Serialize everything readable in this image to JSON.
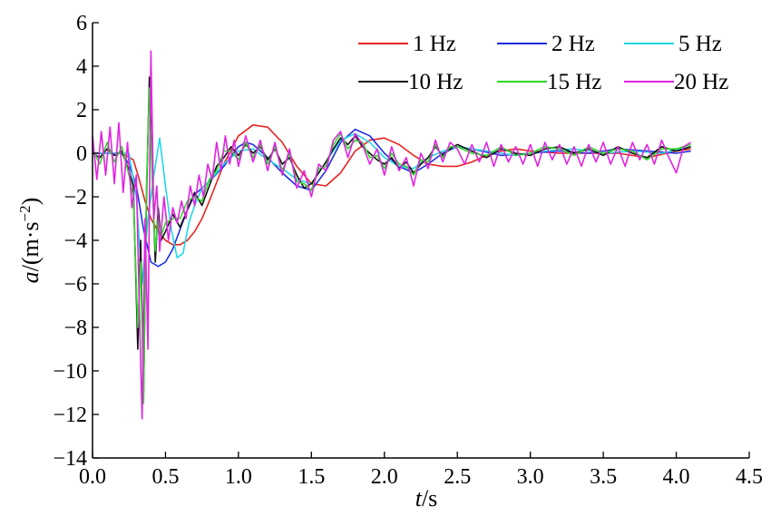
{
  "chart_data": {
    "type": "line",
    "title": "",
    "xlabel_italic": "t",
    "xlabel_unit": "/s",
    "ylabel_italic": "a",
    "ylabel_unit_base": "/(m·s",
    "ylabel_unit_exp": "−2",
    "ylabel_unit_close": ")",
    "xlim": [
      0,
      4.5
    ],
    "ylim": [
      -14,
      6
    ],
    "xticks": [
      0.0,
      0.5,
      1.0,
      1.5,
      2.0,
      2.5,
      3.0,
      3.5,
      4.0,
      4.5
    ],
    "xtick_labels": [
      "0.0",
      "0.5",
      "1.0",
      "1.5",
      "2.0",
      "2.5",
      "3.0",
      "3.5",
      "4.0",
      "4.5"
    ],
    "yticks": [
      -14,
      -12,
      -10,
      -8,
      -6,
      -4,
      -2,
      0,
      2,
      4,
      6
    ],
    "ytick_labels": [
      "−14",
      "−12",
      "−10",
      "−8",
      "−6",
      "−4",
      "−2",
      "0",
      "2",
      "4",
      "6"
    ],
    "grid": false,
    "legend_position": "top-right",
    "series": [
      {
        "name": "1 Hz",
        "color": "#e8241f",
        "x": [
          0.0,
          0.2,
          0.28,
          0.32,
          0.36,
          0.4,
          0.45,
          0.5,
          0.55,
          0.6,
          0.65,
          0.7,
          0.75,
          0.8,
          0.9,
          1.0,
          1.1,
          1.2,
          1.3,
          1.4,
          1.5,
          1.6,
          1.7,
          1.8,
          1.9,
          2.0,
          2.1,
          2.2,
          2.3,
          2.4,
          2.5,
          2.6,
          2.7,
          2.8,
          2.9,
          3.0,
          3.2,
          3.4,
          3.6,
          3.8,
          4.0,
          4.1
        ],
        "y": [
          0.0,
          0.0,
          -0.3,
          -1.2,
          -2.2,
          -3.0,
          -3.6,
          -4.0,
          -4.2,
          -4.2,
          -4.0,
          -3.6,
          -3.0,
          -2.2,
          -0.5,
          0.8,
          1.3,
          1.2,
          0.5,
          -0.6,
          -1.4,
          -1.5,
          -0.9,
          0.1,
          0.6,
          0.7,
          0.4,
          -0.1,
          -0.5,
          -0.6,
          -0.6,
          -0.4,
          -0.1,
          0.1,
          0.2,
          0.1,
          0.0,
          0.0,
          0.0,
          -0.2,
          0.1,
          0.2
        ]
      },
      {
        "name": "2 Hz",
        "color": "#1f2ee0",
        "x": [
          0.0,
          0.2,
          0.25,
          0.3,
          0.35,
          0.4,
          0.45,
          0.5,
          0.55,
          0.6,
          0.65,
          0.7,
          0.8,
          0.9,
          1.0,
          1.05,
          1.1,
          1.2,
          1.3,
          1.4,
          1.5,
          1.6,
          1.7,
          1.8,
          1.9,
          2.0,
          2.1,
          2.2,
          2.3,
          2.4,
          2.5,
          2.6,
          2.8,
          3.0,
          3.2,
          3.4,
          3.6,
          3.8,
          4.0,
          4.1
        ],
        "y": [
          0.0,
          0.0,
          -0.5,
          -1.5,
          -3.5,
          -5.0,
          -5.2,
          -5.0,
          -4.4,
          -3.5,
          -2.6,
          -1.9,
          -1.3,
          -0.6,
          0.3,
          0.5,
          0.4,
          -0.2,
          -0.9,
          -1.5,
          -1.7,
          -0.8,
          0.5,
          1.1,
          0.8,
          0.0,
          -0.6,
          -0.9,
          -0.5,
          0.0,
          0.3,
          0.2,
          -0.1,
          0.0,
          0.1,
          0.0,
          0.2,
          0.1,
          0.0,
          0.1
        ]
      },
      {
        "name": "5 Hz",
        "color": "#22d8e8",
        "x": [
          0.0,
          0.25,
          0.3,
          0.34,
          0.38,
          0.42,
          0.46,
          0.5,
          0.54,
          0.58,
          0.62,
          0.66,
          0.7,
          0.75,
          0.8,
          0.9,
          1.0,
          1.1,
          1.2,
          1.3,
          1.4,
          1.5,
          1.6,
          1.7,
          1.8,
          1.9,
          2.0,
          2.1,
          2.2,
          2.3,
          2.4,
          2.5,
          2.7,
          2.9,
          3.1,
          3.3,
          3.5,
          3.7,
          3.9,
          4.1
        ],
        "y": [
          0.0,
          0.0,
          -2.0,
          -6.0,
          -3.0,
          -1.0,
          0.7,
          -1.5,
          -3.5,
          -4.8,
          -4.6,
          -3.2,
          -2.4,
          -1.6,
          -1.3,
          -0.5,
          0.1,
          0.2,
          -0.3,
          -0.7,
          -1.2,
          -1.4,
          -0.4,
          0.6,
          0.9,
          0.5,
          -0.2,
          -0.6,
          -0.7,
          -0.2,
          0.1,
          0.3,
          0.1,
          -0.1,
          0.1,
          0.2,
          0.0,
          0.1,
          0.0,
          0.3
        ]
      },
      {
        "name": "10 Hz",
        "color": "#101010",
        "x": [
          0.0,
          0.05,
          0.1,
          0.15,
          0.2,
          0.25,
          0.28,
          0.31,
          0.33,
          0.35,
          0.37,
          0.39,
          0.41,
          0.43,
          0.45,
          0.47,
          0.5,
          0.55,
          0.6,
          0.65,
          0.7,
          0.75,
          0.8,
          0.85,
          0.9,
          0.95,
          1.0,
          1.05,
          1.1,
          1.15,
          1.2,
          1.25,
          1.3,
          1.35,
          1.4,
          1.45,
          1.5,
          1.55,
          1.6,
          1.65,
          1.7,
          1.75,
          1.8,
          1.85,
          1.9,
          1.95,
          2.0,
          2.05,
          2.1,
          2.15,
          2.2,
          2.25,
          2.3,
          2.35,
          2.4,
          2.45,
          2.5,
          2.6,
          2.7,
          2.8,
          2.9,
          3.0,
          3.1,
          3.2,
          3.3,
          3.4,
          3.5,
          3.6,
          3.7,
          3.8,
          3.9,
          4.0,
          4.1
        ],
        "y": [
          0.0,
          -0.2,
          0.2,
          -0.1,
          0.1,
          -0.8,
          -1.5,
          -9.0,
          -4.0,
          -11.0,
          -2.0,
          3.5,
          -1.0,
          -5.0,
          -2.5,
          -4.0,
          -3.6,
          -2.8,
          -3.4,
          -2.6,
          -1.8,
          -2.4,
          -1.5,
          -0.6,
          -0.2,
          0.3,
          -0.1,
          0.4,
          0.0,
          0.3,
          -0.3,
          0.2,
          -0.5,
          -0.2,
          -1.0,
          -1.6,
          -1.4,
          -0.9,
          -0.4,
          0.2,
          0.7,
          0.4,
          0.8,
          0.3,
          0.0,
          -0.3,
          -0.5,
          -0.2,
          -0.7,
          -0.4,
          -0.9,
          -0.5,
          -0.2,
          0.3,
          -0.1,
          0.2,
          0.4,
          0.1,
          -0.2,
          0.2,
          0.0,
          -0.1,
          0.2,
          0.3,
          0.0,
          0.2,
          -0.1,
          0.3,
          0.0,
          -0.2,
          0.3,
          0.1,
          0.3
        ]
      },
      {
        "name": "15 Hz",
        "color": "#2fd82a",
        "x": [
          0.0,
          0.05,
          0.1,
          0.15,
          0.2,
          0.25,
          0.28,
          0.31,
          0.33,
          0.35,
          0.37,
          0.39,
          0.41,
          0.43,
          0.45,
          0.47,
          0.5,
          0.55,
          0.6,
          0.65,
          0.7,
          0.75,
          0.8,
          0.85,
          0.9,
          0.95,
          1.0,
          1.05,
          1.1,
          1.15,
          1.2,
          1.25,
          1.3,
          1.35,
          1.4,
          1.45,
          1.5,
          1.55,
          1.6,
          1.65,
          1.7,
          1.75,
          1.8,
          1.85,
          1.9,
          1.95,
          2.0,
          2.05,
          2.1,
          2.15,
          2.2,
          2.25,
          2.3,
          2.35,
          2.4,
          2.45,
          2.5,
          2.6,
          2.7,
          2.8,
          2.9,
          3.0,
          3.1,
          3.2,
          3.3,
          3.4,
          3.5,
          3.6,
          3.7,
          3.8,
          3.9,
          4.0,
          4.1
        ],
        "y": [
          0.2,
          -0.5,
          0.5,
          -0.4,
          0.3,
          -1.0,
          -2.0,
          -8.0,
          -5.0,
          -11.5,
          -1.5,
          3.0,
          -1.5,
          -4.5,
          -3.0,
          -3.8,
          -3.2,
          -3.0,
          -3.0,
          -2.2,
          -2.0,
          -2.2,
          -1.2,
          -0.8,
          0.1,
          0.1,
          -0.3,
          0.5,
          -0.2,
          0.4,
          -0.5,
          0.3,
          -0.8,
          0.0,
          -1.3,
          -1.4,
          -1.7,
          -0.7,
          -0.6,
          0.4,
          0.9,
          0.2,
          0.6,
          0.5,
          -0.2,
          -0.1,
          -0.7,
          0.0,
          -0.5,
          -0.6,
          -1.0,
          -0.3,
          -0.4,
          0.4,
          -0.2,
          0.3,
          0.3,
          0.0,
          -0.1,
          0.3,
          -0.1,
          0.0,
          0.3,
          0.2,
          -0.1,
          0.3,
          0.0,
          0.2,
          0.1,
          -0.3,
          0.2,
          0.2,
          0.4
        ]
      },
      {
        "name": "20 Hz",
        "color": "#e024e0",
        "x": [
          0.0,
          0.03,
          0.06,
          0.09,
          0.12,
          0.15,
          0.18,
          0.21,
          0.24,
          0.27,
          0.3,
          0.32,
          0.34,
          0.36,
          0.38,
          0.4,
          0.42,
          0.44,
          0.46,
          0.49,
          0.52,
          0.55,
          0.58,
          0.61,
          0.64,
          0.67,
          0.7,
          0.73,
          0.76,
          0.79,
          0.82,
          0.85,
          0.88,
          0.91,
          0.94,
          0.97,
          1.0,
          1.05,
          1.1,
          1.15,
          1.2,
          1.25,
          1.3,
          1.35,
          1.4,
          1.45,
          1.5,
          1.55,
          1.6,
          1.65,
          1.7,
          1.75,
          1.8,
          1.85,
          1.9,
          1.95,
          2.0,
          2.05,
          2.1,
          2.15,
          2.2,
          2.25,
          2.3,
          2.35,
          2.4,
          2.45,
          2.5,
          2.55,
          2.6,
          2.65,
          2.7,
          2.75,
          2.8,
          2.85,
          2.9,
          2.95,
          3.0,
          3.05,
          3.1,
          3.15,
          3.2,
          3.25,
          3.3,
          3.35,
          3.4,
          3.45,
          3.5,
          3.55,
          3.6,
          3.65,
          3.7,
          3.75,
          3.8,
          3.85,
          3.9,
          3.95,
          4.0,
          4.05,
          4.1
        ],
        "y": [
          0.8,
          -1.2,
          1.0,
          -1.0,
          1.2,
          -1.4,
          1.4,
          -1.8,
          0.5,
          -2.5,
          -1.0,
          -7.0,
          -12.2,
          -3.0,
          -9.0,
          4.7,
          -3.0,
          -1.5,
          -4.5,
          -2.0,
          -4.0,
          -2.5,
          -3.2,
          -2.2,
          -3.0,
          -1.5,
          -2.4,
          -1.0,
          -2.0,
          -0.5,
          -1.2,
          0.5,
          -0.8,
          0.8,
          -0.5,
          0.6,
          -0.6,
          0.8,
          -0.4,
          0.6,
          -0.8,
          0.5,
          -1.0,
          0.2,
          -1.6,
          -0.8,
          -2.0,
          -0.5,
          -0.8,
          0.6,
          1.0,
          -0.2,
          0.9,
          0.4,
          -0.5,
          0.2,
          -1.0,
          0.3,
          -0.8,
          -0.2,
          -1.5,
          0.0,
          -0.7,
          0.6,
          -0.4,
          0.5,
          0.2,
          -0.5,
          0.4,
          -0.4,
          0.5,
          -0.6,
          0.4,
          -0.4,
          0.3,
          -0.5,
          0.4,
          -0.6,
          0.5,
          -0.3,
          0.4,
          -0.5,
          0.3,
          -0.6,
          0.4,
          -0.4,
          0.5,
          -0.5,
          0.3,
          -0.6,
          0.5,
          -0.3,
          0.4,
          -0.5,
          0.6,
          -0.2,
          -0.9,
          0.3,
          0.5
        ]
      }
    ]
  }
}
